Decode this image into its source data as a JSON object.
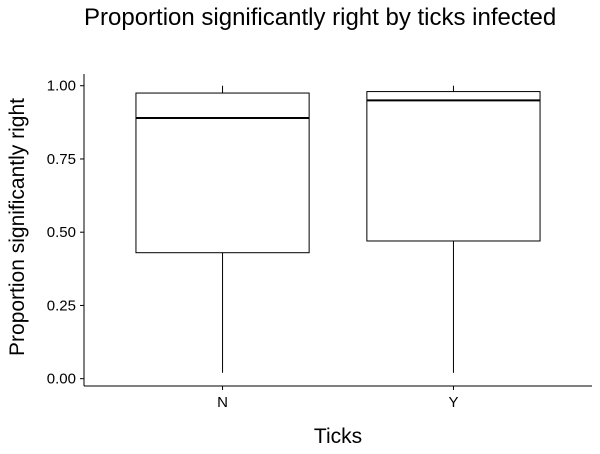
{
  "chart_data": {
    "type": "box",
    "title": "Proportion significantly right by ticks infected",
    "xlabel": "Ticks",
    "ylabel": "Proportion significantly right",
    "categories": [
      "N",
      "Y"
    ],
    "boxes": [
      {
        "category": "N",
        "min": 0.02,
        "q1": 0.43,
        "median": 0.89,
        "q3": 0.975,
        "max": 1.0
      },
      {
        "category": "Y",
        "min": 0.02,
        "q1": 0.47,
        "median": 0.95,
        "q3": 0.98,
        "max": 1.0
      }
    ],
    "ylim": [
      -0.025,
      1.04
    ],
    "yticks": [
      0.0,
      0.25,
      0.5,
      0.75,
      1.0
    ],
    "ytick_labels": [
      "0.00",
      "0.25",
      "0.50",
      "0.75",
      "1.00"
    ],
    "grid": false,
    "legend": "none",
    "colors": {
      "line": "#000000",
      "fill": "#ffffff",
      "background": "#ffffff"
    }
  }
}
